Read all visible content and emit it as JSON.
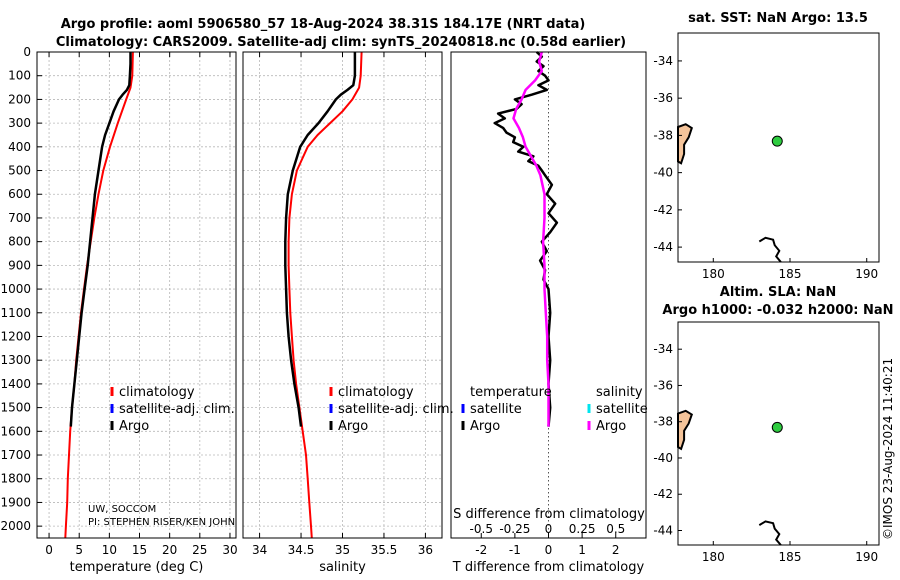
{
  "header": {
    "title_line1": "Argo profile: aoml 5906580_57 18-Aug-2024 38.31S 184.17E (NRT data)",
    "title_line2": "Climatology: CARS2009. Satellite-adj clim: synTS_20240818.nc (0.58d earlier)"
  },
  "credit": {
    "line1": "UW, SOCCOM",
    "line2": "PI: STEPHEN RISER/KEN JOHN"
  },
  "watermark": "©IMOS 23-Aug-2024 11:40:21",
  "colors": {
    "climatology": "#ff0000",
    "satellite_adj": "#0000ff",
    "argo": "#000000",
    "satellite_salinity": "#00e5ee",
    "argo_salinity": "#ff00ff",
    "land": "#f5c49a",
    "float_marker": "#2ecc40"
  },
  "chart_data": [
    {
      "id": "temperature",
      "type": "line",
      "xlabel": "temperature (deg C)",
      "ylabel": "",
      "xlim": [
        -2,
        31
      ],
      "ylim": [
        2050,
        0
      ],
      "xticks": [
        0,
        5,
        10,
        15,
        20,
        25,
        30
      ],
      "yticks": [
        0,
        100,
        200,
        300,
        400,
        500,
        600,
        700,
        800,
        900,
        1000,
        1100,
        1200,
        1300,
        1400,
        1500,
        1600,
        1700,
        1800,
        1900,
        2000
      ],
      "grid": true,
      "legend": {
        "position": "lower-right",
        "entries": [
          {
            "label": "climatology",
            "color_key": "climatology"
          },
          {
            "label": "satellite-adj. clim.",
            "color_key": "satellite_adj"
          },
          {
            "label": "Argo",
            "color_key": "argo"
          }
        ]
      },
      "series": [
        {
          "name": "climatology",
          "color_key": "climatology",
          "width": 2,
          "depth": [
            0,
            100,
            150,
            200,
            300,
            400,
            500,
            600,
            700,
            800,
            900,
            1000,
            1100,
            1200,
            1300,
            1400,
            1500,
            1600,
            1700,
            1800,
            1900,
            2000,
            2050
          ],
          "values": [
            13.9,
            13.8,
            13.5,
            12.8,
            11.4,
            10.1,
            9.0,
            8.2,
            7.5,
            6.9,
            6.3,
            5.8,
            5.3,
            4.9,
            4.5,
            4.2,
            3.8,
            3.5,
            3.3,
            3.1,
            3.0,
            2.8,
            2.7
          ]
        },
        {
          "name": "Argo",
          "color_key": "argo",
          "width": 2.5,
          "depth": [
            0,
            50,
            100,
            140,
            160,
            180,
            200,
            250,
            300,
            350,
            400,
            500,
            600,
            700,
            800,
            900,
            1000,
            1100,
            1200,
            1300,
            1400,
            1500,
            1580
          ],
          "values": [
            13.5,
            13.5,
            13.4,
            13.3,
            12.9,
            12.2,
            11.6,
            10.7,
            10.0,
            9.3,
            8.8,
            8.2,
            7.6,
            7.2,
            6.8,
            6.4,
            5.9,
            5.4,
            5.0,
            4.6,
            4.2,
            3.8,
            3.6
          ]
        }
      ]
    },
    {
      "id": "salinity",
      "type": "line",
      "xlabel": "salinity",
      "ylabel": "",
      "xlim": [
        33.8,
        36.2
      ],
      "ylim": [
        2050,
        0
      ],
      "xticks": [
        34,
        34.5,
        35,
        35.5,
        36
      ],
      "xtick_labels": [
        "34",
        "34.5",
        "35",
        "35.5",
        "36"
      ],
      "grid": true,
      "legend": {
        "position": "lower-right",
        "entries": [
          {
            "label": "climatology",
            "color_key": "climatology"
          },
          {
            "label": "satellite-adj. clim.",
            "color_key": "satellite_adj"
          },
          {
            "label": "Argo",
            "color_key": "argo"
          }
        ]
      },
      "series": [
        {
          "name": "climatology",
          "color_key": "climatology",
          "width": 2,
          "depth": [
            0,
            100,
            150,
            200,
            250,
            300,
            350,
            400,
            500,
            600,
            700,
            800,
            900,
            1000,
            1100,
            1200,
            1300,
            1400,
            1500,
            1600,
            1700,
            1800,
            1900,
            2000,
            2050
          ],
          "values": [
            35.23,
            35.22,
            35.2,
            35.12,
            35.0,
            34.85,
            34.7,
            34.58,
            34.45,
            34.39,
            34.36,
            34.35,
            34.35,
            34.36,
            34.37,
            34.39,
            34.41,
            34.44,
            34.48,
            34.52,
            34.56,
            34.58,
            34.6,
            34.62,
            34.63
          ]
        },
        {
          "name": "Argo",
          "color_key": "argo",
          "width": 2.5,
          "depth": [
            0,
            50,
            100,
            140,
            160,
            180,
            200,
            250,
            300,
            350,
            400,
            500,
            600,
            700,
            800,
            900,
            1000,
            1100,
            1200,
            1300,
            1400,
            1500,
            1580
          ],
          "values": [
            35.15,
            35.15,
            35.15,
            35.13,
            35.06,
            34.98,
            34.92,
            34.82,
            34.71,
            34.58,
            34.49,
            34.4,
            34.34,
            34.32,
            34.31,
            34.31,
            34.32,
            34.33,
            34.35,
            34.38,
            34.42,
            34.47,
            34.5
          ]
        }
      ]
    },
    {
      "id": "difference",
      "type": "line",
      "xlabel": "T difference from climatology",
      "xlabel_top": "S difference from climatology",
      "xlim": [
        -2.9,
        2.9
      ],
      "ylim": [
        2050,
        0
      ],
      "xticks": [
        -2,
        -1,
        0,
        1,
        2
      ],
      "top_tick_labels": [
        "-0.5",
        "-0.25",
        "0",
        "0.25",
        "0.5"
      ],
      "grid": false,
      "legend_temperature": {
        "title": "temperature",
        "entries": [
          {
            "label": "satellite",
            "color_key": "satellite_adj"
          },
          {
            "label": "Argo",
            "color_key": "argo"
          }
        ]
      },
      "legend_salinity": {
        "title": "salinity",
        "entries": [
          {
            "label": "satellite",
            "color_key": "satellite_salinity"
          },
          {
            "label": "Argo",
            "color_key": "argo_salinity"
          }
        ]
      },
      "series": [
        {
          "name": "T difference Argo",
          "color_key": "argo",
          "width": 2.5,
          "depth": [
            0,
            20,
            40,
            60,
            80,
            100,
            120,
            140,
            160,
            180,
            200,
            220,
            240,
            260,
            280,
            300,
            320,
            340,
            360,
            380,
            400,
            420,
            440,
            460,
            480,
            500,
            520,
            560,
            600,
            640,
            680,
            720,
            760,
            800,
            840,
            880,
            920,
            960,
            1000,
            1100,
            1200,
            1300,
            1400,
            1500,
            1580
          ],
          "values": [
            -0.35,
            -0.2,
            -0.35,
            -0.15,
            -0.3,
            -0.1,
            0.0,
            -0.3,
            -0.05,
            -0.5,
            -1.0,
            -0.8,
            -0.95,
            -1.5,
            -1.3,
            -1.6,
            -1.35,
            -1.25,
            -1.0,
            -1.05,
            -0.75,
            -0.9,
            -0.45,
            -0.6,
            -0.3,
            -0.2,
            -0.1,
            0.1,
            -0.05,
            0.2,
            0.0,
            0.25,
            0.05,
            -0.2,
            -0.05,
            -0.25,
            -0.1,
            -0.15,
            0.0,
            0.05,
            0.0,
            0.05,
            0.0,
            0.05,
            0.0
          ]
        },
        {
          "name": "S difference Argo",
          "color_key": "argo_salinity",
          "width": 2.5,
          "depth": [
            0,
            40,
            80,
            120,
            160,
            200,
            240,
            280,
            320,
            360,
            400,
            440,
            480,
            520,
            600,
            700,
            800,
            900,
            1000,
            1100,
            1200,
            1300,
            1400,
            1500,
            1580
          ],
          "values": [
            -0.05,
            -0.07,
            -0.05,
            -0.1,
            -0.17,
            -0.2,
            -0.24,
            -0.26,
            -0.22,
            -0.19,
            -0.17,
            -0.13,
            -0.09,
            -0.06,
            -0.03,
            -0.03,
            -0.04,
            -0.03,
            -0.03,
            -0.02,
            -0.01,
            -0.01,
            0.0,
            0.0,
            0.0
          ]
        }
      ]
    },
    {
      "id": "map_sst",
      "type": "scatter",
      "title": "sat. SST: NaN Argo: 13.5",
      "xlim": [
        177.7,
        190.8
      ],
      "ylim": [
        -44.8,
        -32.5
      ],
      "xticks": [
        180,
        185,
        190
      ],
      "yticks": [
        -34,
        -36,
        -38,
        -40,
        -42,
        -44
      ],
      "points": [
        {
          "lon": 184.17,
          "lat": -38.31
        }
      ]
    },
    {
      "id": "map_sla",
      "type": "scatter",
      "title_line1": "Altim. SLA: NaN",
      "title_line2": "Argo h1000: -0.032 h2000: NaN",
      "xlim": [
        177.7,
        190.8
      ],
      "ylim": [
        -44.8,
        -32.5
      ],
      "xticks": [
        180,
        185,
        190
      ],
      "yticks": [
        -34,
        -36,
        -38,
        -40,
        -42,
        -44
      ],
      "points": [
        {
          "lon": 184.17,
          "lat": -38.31
        }
      ]
    }
  ]
}
